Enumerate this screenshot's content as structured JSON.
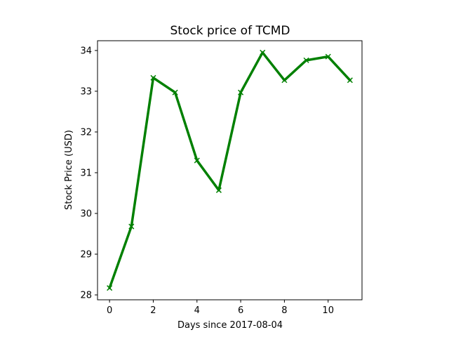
{
  "chart_data": {
    "type": "line",
    "title": "Stock price of TCMD",
    "xlabel": "Days since 2017-08-04",
    "ylabel": "Stock Price (USD)",
    "x": [
      0,
      1,
      2,
      3,
      4,
      5,
      6,
      7,
      8,
      9,
      10,
      11
    ],
    "series": [
      {
        "values": [
          28.17,
          29.68,
          33.33,
          32.97,
          31.3,
          30.57,
          32.97,
          33.95,
          33.27,
          33.76,
          33.85,
          33.27
        ],
        "color": "#008000",
        "marker": "x"
      }
    ],
    "xlim": [
      -0.55,
      11.55
    ],
    "ylim": [
      27.88,
      34.24
    ],
    "xticks": [
      0,
      2,
      4,
      6,
      8,
      10
    ],
    "yticks": [
      28,
      29,
      30,
      31,
      32,
      33,
      34
    ],
    "xtick_labels": [
      "0",
      "2",
      "4",
      "6",
      "8",
      "10"
    ],
    "ytick_labels": [
      "28",
      "29",
      "30",
      "31",
      "32",
      "33",
      "34"
    ],
    "grid": false,
    "legend": "none"
  }
}
